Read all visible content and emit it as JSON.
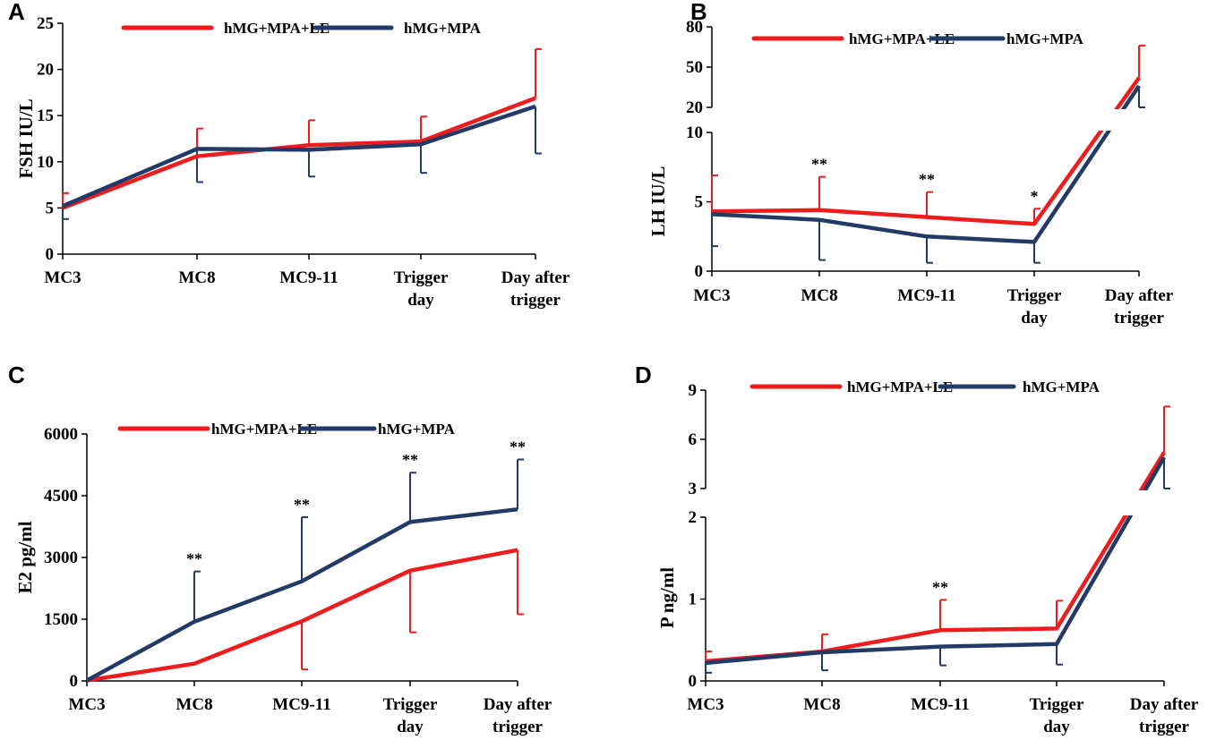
{
  "colors": {
    "red": "#ee1c1c",
    "navy": "#233a66",
    "axis": "#000000"
  },
  "categories": [
    "MC3",
    "MC8",
    "MC9-11",
    "Trigger\nday",
    "Day after\ntrigger"
  ],
  "chart_data": [
    {
      "panel": "A",
      "type": "line",
      "ylabel": "FSH IU/L",
      "ylim": [
        0,
        25
      ],
      "yticks": [
        "0",
        "5",
        "10",
        "15",
        "20",
        "25"
      ],
      "legend": [
        "hMG+MPA+LE",
        "hMG+MPA"
      ],
      "series": [
        {
          "name": "hMG+MPA+LE",
          "values": [
            5.0,
            10.6,
            11.8,
            12.2,
            16.9
          ],
          "err_up": [
            6.6,
            13.6,
            14.5,
            14.9,
            22.2
          ],
          "err_down": [
            null,
            null,
            null,
            null,
            null
          ]
        },
        {
          "name": "hMG+MPA",
          "values": [
            5.2,
            11.4,
            11.3,
            11.9,
            16.0
          ],
          "err_up": [
            null,
            null,
            null,
            null,
            null
          ],
          "err_down": [
            3.8,
            7.8,
            8.4,
            8.8,
            10.9
          ]
        }
      ],
      "annotations": [
        "",
        "",
        "",
        "",
        ""
      ]
    },
    {
      "panel": "B",
      "type": "line",
      "ylabel": "LH IU/L",
      "broken_axis": true,
      "lower_ylim": [
        0,
        10
      ],
      "upper_ylim": [
        20,
        80
      ],
      "lower_yticks": [
        "0",
        "5",
        "10"
      ],
      "upper_yticks": [
        "20",
        "50",
        "80"
      ],
      "legend": [
        "hMG+MPA+LE",
        "hMG+MPA"
      ],
      "series": [
        {
          "name": "hMG+MPA+LE",
          "values": [
            4.3,
            4.4,
            3.9,
            3.4,
            42
          ],
          "err_up": [
            6.9,
            6.8,
            5.7,
            4.5,
            66
          ],
          "err_down": [
            null,
            null,
            null,
            null,
            null
          ]
        },
        {
          "name": "hMG+MPA",
          "values": [
            4.1,
            3.7,
            2.5,
            2.1,
            36
          ],
          "err_up": [
            null,
            null,
            null,
            null,
            null
          ],
          "err_down": [
            1.8,
            0.8,
            0.6,
            0.6,
            20
          ]
        }
      ],
      "annotations": [
        "",
        "**",
        "**",
        "*",
        ""
      ]
    },
    {
      "panel": "C",
      "type": "line",
      "ylabel": "E2 pg/ml",
      "ylim": [
        0,
        6000
      ],
      "yticks": [
        "0",
        "1500",
        "3000",
        "4500",
        "6000"
      ],
      "legend": [
        "hMG+MPA+LE",
        "hMG+MPA"
      ],
      "series": [
        {
          "name": "hMG+MPA+LE",
          "values": [
            10,
            420,
            1450,
            2680,
            3180
          ],
          "err_up": [
            null,
            null,
            null,
            null,
            null
          ],
          "err_down": [
            null,
            null,
            280,
            1180,
            1620
          ]
        },
        {
          "name": "hMG+MPA",
          "values": [
            10,
            1440,
            2420,
            3860,
            4170
          ],
          "err_up": [
            null,
            2660,
            3980,
            5060,
            5380
          ],
          "err_down": [
            null,
            null,
            null,
            null,
            null
          ]
        }
      ],
      "annotations": [
        "",
        "**",
        "**",
        "**",
        "**"
      ]
    },
    {
      "panel": "D",
      "type": "line",
      "ylabel": "P ng/ml",
      "broken_axis": true,
      "lower_ylim": [
        0,
        2
      ],
      "upper_ylim": [
        3,
        9
      ],
      "lower_yticks": [
        "0",
        "1",
        "2"
      ],
      "upper_yticks": [
        "3",
        "6",
        "9"
      ],
      "legend": [
        "hMG+MPA+LE",
        "hMG+MPA"
      ],
      "series": [
        {
          "name": "hMG+MPA+LE",
          "values": [
            0.24,
            0.36,
            0.62,
            0.64,
            5.2
          ],
          "err_up": [
            0.36,
            0.57,
            0.99,
            0.98,
            8.0
          ],
          "err_down": [
            null,
            null,
            null,
            null,
            null
          ]
        },
        {
          "name": "hMG+MPA",
          "values": [
            0.22,
            0.35,
            0.42,
            0.45,
            4.9
          ],
          "err_up": [
            null,
            null,
            null,
            null,
            null
          ],
          "err_down": [
            0.1,
            0.13,
            0.19,
            0.2,
            3.0
          ]
        }
      ],
      "annotations": [
        "",
        "",
        "**",
        "",
        ""
      ]
    }
  ]
}
